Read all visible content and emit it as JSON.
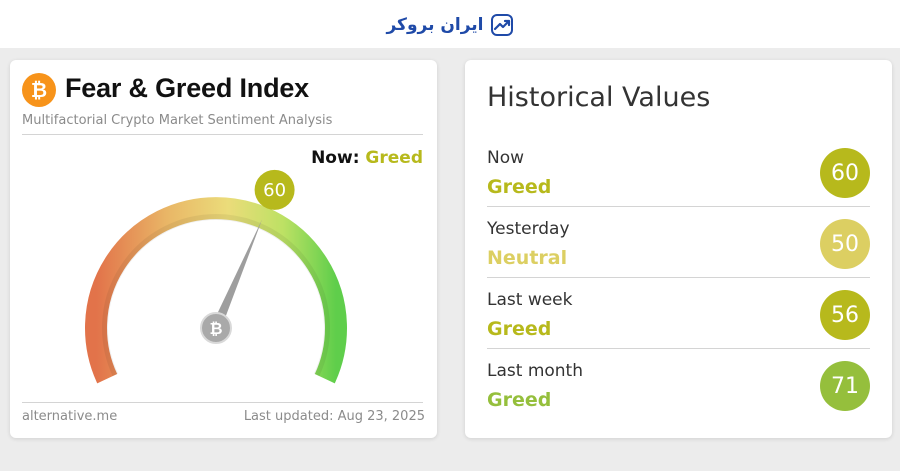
{
  "site": {
    "brand_text": "ایران بروکر",
    "brand_icon": "chart-trend-icon",
    "brand_color": "#1f4aa8"
  },
  "gauge_card": {
    "logo_icon": "bitcoin-icon",
    "logo_symbol": "₿",
    "title": "Fear & Greed Index",
    "subtitle": "Multifactorial Crypto Market Sentiment Analysis",
    "now_label": "Now:",
    "now_classification": "Greed",
    "value": 60,
    "value_text": "60",
    "scale_min": 0,
    "scale_max": 100,
    "footer_source": "alternative.me",
    "footer_updated": "Last updated: Aug 23, 2025",
    "colors": {
      "fear": "#e2734a",
      "neutral": "#ead56d",
      "greed": "#b7b91c",
      "extreme_greed": "#5fce4b",
      "needle": "#9e9e9e"
    }
  },
  "history_card": {
    "title": "Historical Values",
    "rows": [
      {
        "label": "Now",
        "classification": "Greed",
        "value": "60",
        "color": "#b7b91c"
      },
      {
        "label": "Yesterday",
        "classification": "Neutral",
        "value": "50",
        "color": "#dccf62"
      },
      {
        "label": "Last week",
        "classification": "Greed",
        "value": "56",
        "color": "#b7b91c"
      },
      {
        "label": "Last month",
        "classification": "Greed",
        "value": "71",
        "color": "#95bf3c"
      }
    ]
  }
}
